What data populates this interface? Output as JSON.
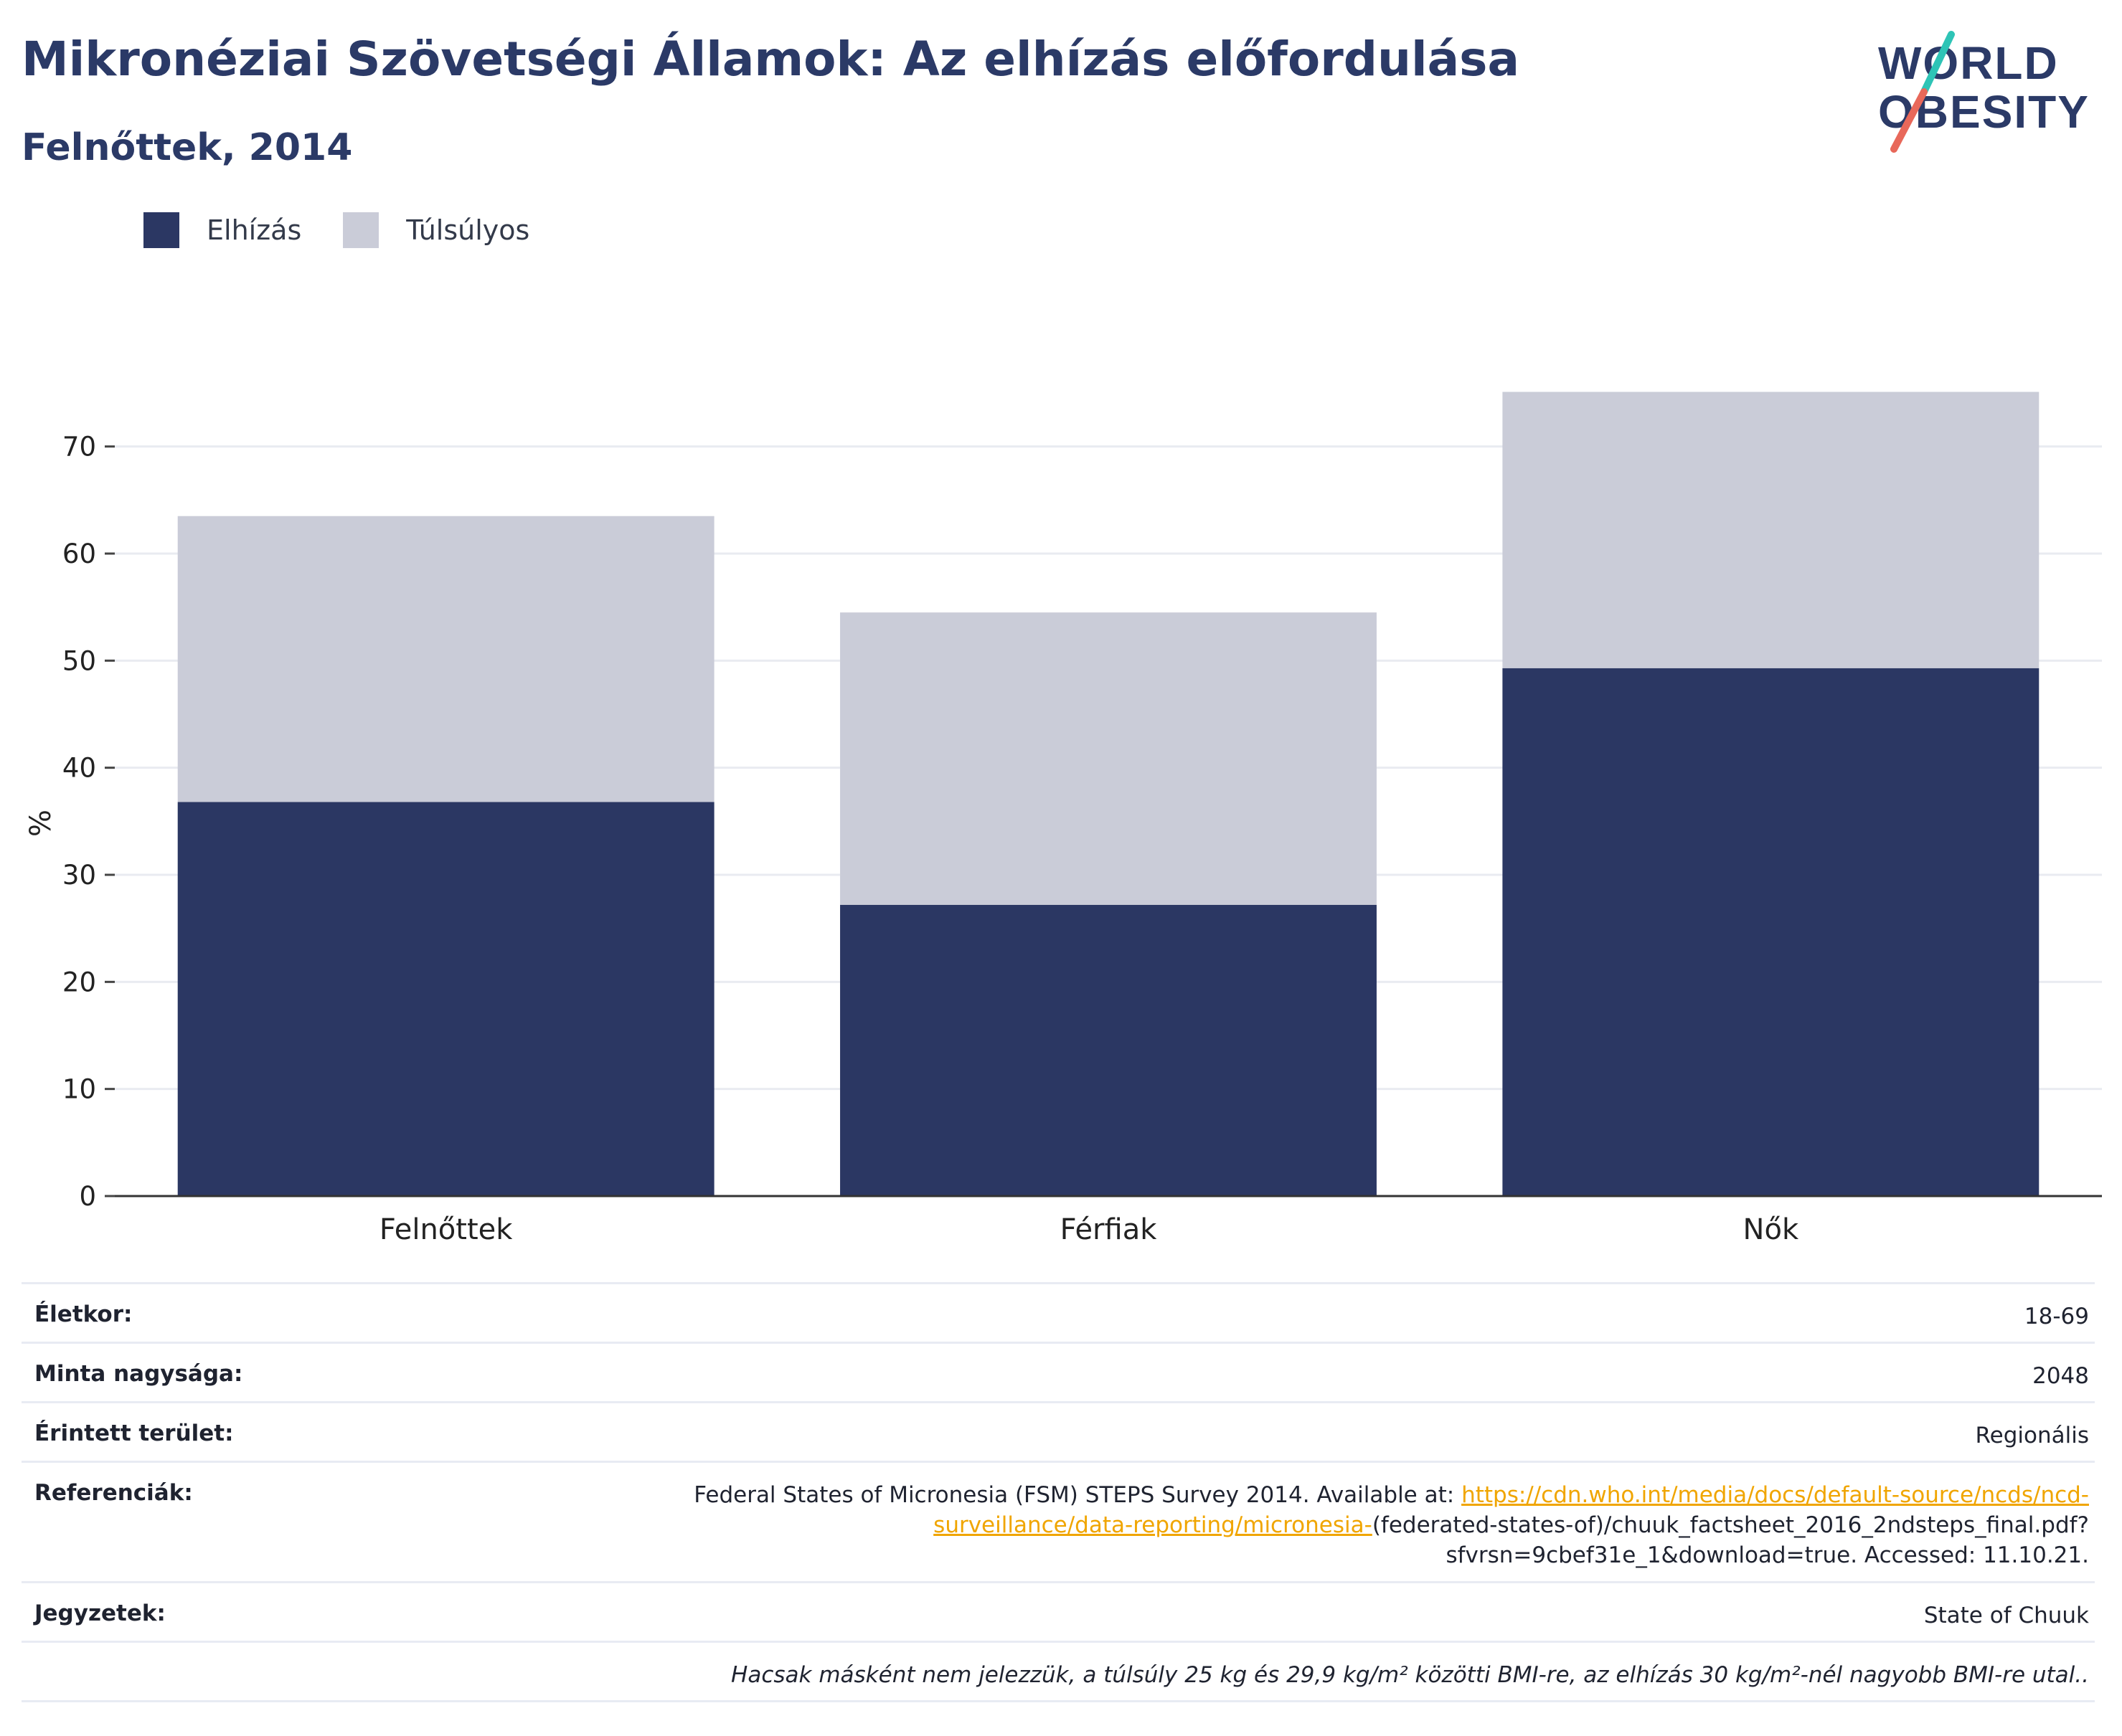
{
  "header": {
    "title": "Mikronéziai Szövetségi Államok: Az elhízás előfordulása",
    "subtitle": "Felnőttek, 2014"
  },
  "logo": {
    "line1": "WORLD",
    "line2": "OBESITY"
  },
  "legend": [
    {
      "label": "Elhízás",
      "color": "#2b3763"
    },
    {
      "label": "Túlsúlyos",
      "color": "#caccd8"
    }
  ],
  "chart_data": {
    "type": "bar",
    "stacked": true,
    "categories": [
      "Felnőttek",
      "Férfiak",
      "Nők"
    ],
    "series": [
      {
        "name": "Elhízás",
        "values": [
          36.8,
          27.2,
          49.3
        ],
        "color": "#2b3763"
      },
      {
        "name": "Túlsúlyos",
        "values": [
          26.7,
          27.3,
          25.8
        ],
        "color": "#caccd8"
      }
    ],
    "ylabel": "%",
    "ylim": [
      0,
      75
    ],
    "yticks": [
      0,
      10,
      20,
      30,
      40,
      50,
      60,
      70
    ],
    "grid": true
  },
  "details": {
    "age_label": "Életkor:",
    "age_value": "18-69",
    "sample_label": "Minta nagysága:",
    "sample_value": "2048",
    "area_label": "Érintett terület:",
    "area_value": "Regionális",
    "ref_label": "Referenciák:",
    "ref_text": "Federal States of Micronesia (FSM) STEPS Survey 2014. Available at: ",
    "ref_link": "https://cdn.who.int/media/docs/default-source/ncds/ncd-surveillance/data-reporting/micronesia-",
    "ref_tail": "(federated-states-of)/chuuk_factsheet_2016_2ndsteps_final.pdf?sfvrsn=9cbef31e_1&download=true. Accessed: 11.10.21.",
    "notes_label": "Jegyzetek:",
    "notes_value": "State of Chuuk",
    "footnote": "Hacsak másként nem jelezzük, a túlsúly 25 kg és 29,9 kg/m² közötti BMI-re, az elhízás 30 kg/m²-nél nagyobb BMI-re utal.."
  }
}
